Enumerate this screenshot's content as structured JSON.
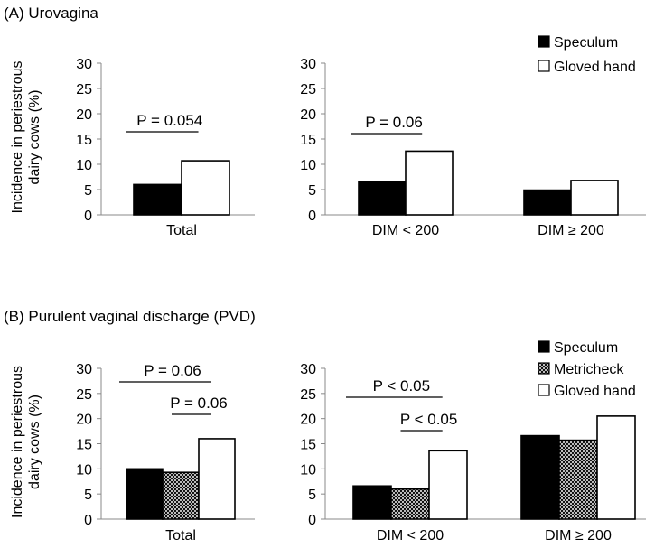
{
  "figure": {
    "panel_a_title": "(A) Urovagina",
    "panel_b_title": "(B) Purulent vaginal discharge (PVD)"
  },
  "colors": {
    "speculum": "#000000",
    "gloved_hand": "#ffffff",
    "axis": "#888888"
  },
  "chart_data": [
    {
      "type": "bar",
      "panel": "A",
      "subplot": "total",
      "ylabel": "Incidence in periestrous dairy cows (%)",
      "ylim": [
        0,
        30
      ],
      "yticks": [
        0,
        5,
        10,
        15,
        20,
        25,
        30
      ],
      "categories": [
        "Total"
      ],
      "series": [
        {
          "name": "Speculum",
          "pattern": "solid",
          "values": [
            6.0
          ]
        },
        {
          "name": "Gloved hand",
          "pattern": "open",
          "values": [
            10.7
          ]
        }
      ],
      "annotations": [
        {
          "text": "P = 0.054",
          "category": 0,
          "from": 0,
          "to": 1,
          "level": 0
        }
      ]
    },
    {
      "type": "bar",
      "panel": "A",
      "subplot": "dim",
      "ylim": [
        0,
        30
      ],
      "yticks": [
        0,
        5,
        10,
        15,
        20,
        25,
        30
      ],
      "categories": [
        "DIM < 200",
        "DIM  ≥ 200"
      ],
      "series": [
        {
          "name": "Speculum",
          "pattern": "solid",
          "values": [
            6.6,
            4.9
          ]
        },
        {
          "name": "Gloved hand",
          "pattern": "open",
          "values": [
            12.6,
            6.8
          ]
        }
      ],
      "legend": {
        "position": "top-right",
        "entries": [
          "Speculum",
          "Gloved hand"
        ]
      },
      "annotations": [
        {
          "text": "P = 0.06",
          "category": 0,
          "from": 0,
          "to": 1,
          "level": 0
        }
      ]
    },
    {
      "type": "bar",
      "panel": "B",
      "subplot": "total",
      "ylabel": "Incidence in periestrous dairy cows (%)",
      "ylim": [
        0,
        30
      ],
      "yticks": [
        0,
        5,
        10,
        15,
        20,
        25,
        30
      ],
      "categories": [
        "Total"
      ],
      "series": [
        {
          "name": "Speculum",
          "pattern": "solid",
          "values": [
            10.0
          ]
        },
        {
          "name": "Metricheck",
          "pattern": "hatched",
          "values": [
            9.3
          ]
        },
        {
          "name": "Gloved hand",
          "pattern": "open",
          "values": [
            16.0
          ]
        }
      ],
      "annotations": [
        {
          "text": "P = 0.06",
          "category": 0,
          "from": 0,
          "to": 2,
          "level": 1
        },
        {
          "text": "P = 0.06",
          "category": 0,
          "from": 1,
          "to": 2,
          "level": 0
        }
      ]
    },
    {
      "type": "bar",
      "panel": "B",
      "subplot": "dim",
      "ylim": [
        0,
        30
      ],
      "yticks": [
        0,
        5,
        10,
        15,
        20,
        25,
        30
      ],
      "categories": [
        "DIM < 200",
        "DIM ≥ 200"
      ],
      "series": [
        {
          "name": "Speculum",
          "pattern": "solid",
          "values": [
            6.6,
            16.6
          ]
        },
        {
          "name": "Metricheck",
          "pattern": "hatched",
          "values": [
            6.0,
            15.7
          ]
        },
        {
          "name": "Gloved hand",
          "pattern": "open",
          "values": [
            13.6,
            20.5
          ]
        }
      ],
      "legend": {
        "position": "top-right",
        "entries": [
          "Speculum",
          "Metricheck",
          "Gloved hand"
        ]
      },
      "annotations": [
        {
          "text": "P < 0.05",
          "category": 0,
          "from": 0,
          "to": 2,
          "level": 1
        },
        {
          "text": "P < 0.05",
          "category": 0,
          "from": 1,
          "to": 2,
          "level": 0
        }
      ]
    }
  ]
}
